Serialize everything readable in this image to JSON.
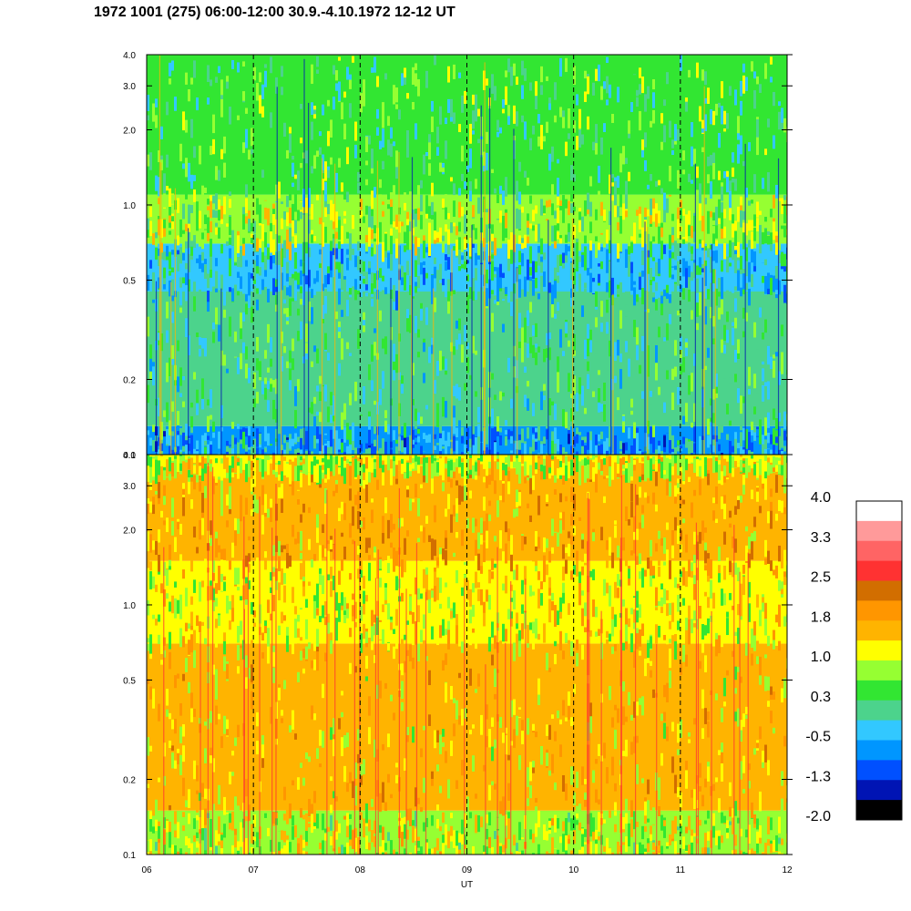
{
  "title": "1972 1001 (275) 06:00-12:00 30.9.-4.10.1972  12-12 UT",
  "chart_data": [
    {
      "type": "heatmap",
      "panel": "upper spectrogram",
      "xlabel": "",
      "ylabel": "",
      "x_range": [
        "06",
        "12"
      ],
      "ylim": [
        0.1,
        4.0
      ],
      "yscale": "log",
      "yticks": [
        "0.1",
        "0.2",
        "0.5",
        "1.0",
        "2.0",
        "3.0",
        "4.0"
      ],
      "hour_markers": [
        "07",
        "08",
        "09",
        "10",
        "11"
      ],
      "layers": [
        {
          "y_from": 0.1,
          "y_to": 0.13,
          "level": -0.5
        },
        {
          "y_from": 0.13,
          "y_to": 0.45,
          "level": 0.2
        },
        {
          "y_from": 0.45,
          "y_to": 0.7,
          "level": -0.2
        },
        {
          "y_from": 0.7,
          "y_to": 1.1,
          "level": 0.8
        },
        {
          "y_from": 1.1,
          "y_to": 4.0,
          "level": 0.4
        }
      ]
    },
    {
      "type": "heatmap",
      "panel": "lower spectrogram",
      "xlabel": "UT",
      "ylabel": "",
      "x_range": [
        "06",
        "12"
      ],
      "xticks": [
        "06",
        "07",
        "08",
        "09",
        "10",
        "11",
        "12"
      ],
      "ylim": [
        0.1,
        4.0
      ],
      "yscale": "log",
      "yticks": [
        "0.1",
        "0.2",
        "0.5",
        "1.0",
        "2.0",
        "3.0",
        "4.0"
      ],
      "hour_markers": [
        "07",
        "08",
        "09",
        "10",
        "11"
      ],
      "layers": [
        {
          "y_from": 0.1,
          "y_to": 0.15,
          "level": 1.0
        },
        {
          "y_from": 0.15,
          "y_to": 0.7,
          "level": 1.4
        },
        {
          "y_from": 0.7,
          "y_to": 1.5,
          "level": 1.2
        },
        {
          "y_from": 1.5,
          "y_to": 3.6,
          "level": 1.6
        },
        {
          "y_from": 3.6,
          "y_to": 4.0,
          "level": 1.1
        }
      ]
    },
    {
      "type": "colorbar",
      "labels": [
        "4.0",
        "3.3",
        "2.5",
        "1.8",
        "1.0",
        "0.3",
        "-0.5",
        "-1.3",
        "-2.0"
      ],
      "colors": [
        "#ffffff",
        "#ff9a9a",
        "#ff6464",
        "#ff3232",
        "#d26e00",
        "#ff9600",
        "#ffb400",
        "#ffff00",
        "#96ff32",
        "#32e632",
        "#4cd38c",
        "#32c8ff",
        "#0096ff",
        "#0050ff",
        "#0014b4",
        "#000000"
      ]
    }
  ]
}
